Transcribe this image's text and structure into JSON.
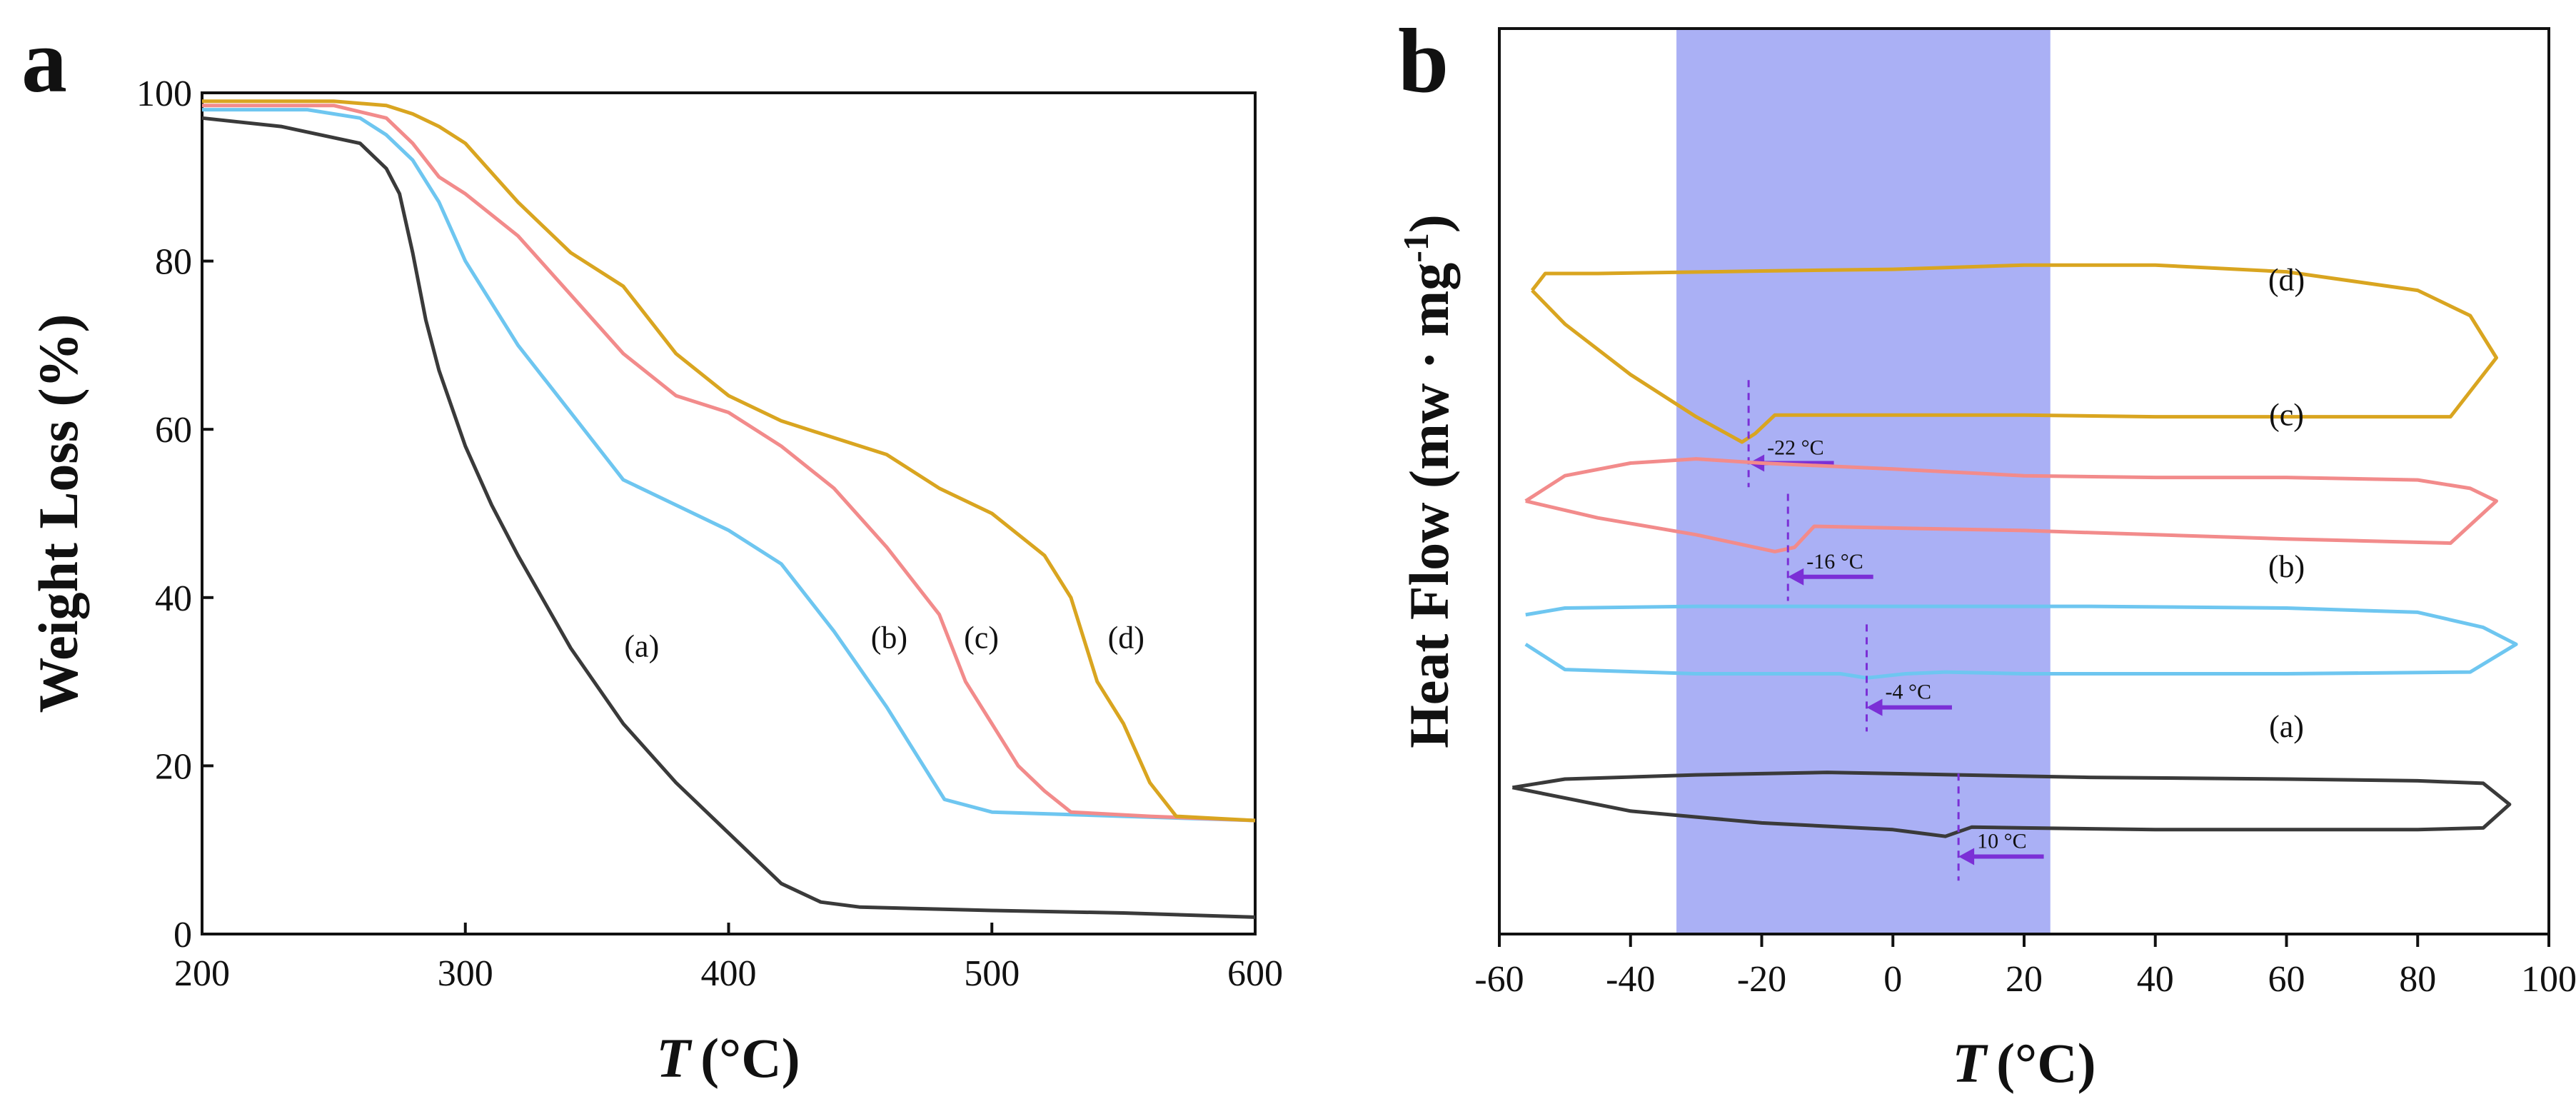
{
  "chart_data": [
    {
      "type": "line",
      "panel_label": "a",
      "xlabel_italic": "T",
      "xlabel_unit": "(°C)",
      "ylabel": "Weight Loss (%)",
      "xlim": [
        200,
        600
      ],
      "ylim": [
        0,
        100
      ],
      "xticks": [
        200,
        300,
        400,
        500,
        600
      ],
      "yticks": [
        0,
        20,
        40,
        60,
        80,
        100
      ],
      "series": [
        {
          "name": "(a)",
          "color": "#3a3a3a",
          "x": [
            200,
            230,
            260,
            270,
            275,
            280,
            285,
            290,
            300,
            310,
            320,
            340,
            360,
            380,
            400,
            420,
            435,
            450,
            500,
            550,
            600
          ],
          "y": [
            97,
            96,
            94,
            91,
            88,
            81,
            73,
            67,
            58,
            51,
            45,
            34,
            25,
            18,
            12,
            6,
            3.8,
            3.2,
            2.8,
            2.5,
            2.0
          ],
          "label_x": 367,
          "label_y": 33
        },
        {
          "name": "(b)",
          "color": "#6ec6f0",
          "x": [
            200,
            240,
            260,
            270,
            280,
            290,
            300,
            320,
            340,
            360,
            380,
            400,
            420,
            440,
            460,
            470,
            478,
            482,
            500,
            550,
            600
          ],
          "y": [
            98,
            98,
            97,
            95,
            92,
            87,
            80,
            70,
            62,
            54,
            51,
            48,
            44,
            36,
            27,
            22,
            18,
            16,
            14.5,
            14,
            13.5
          ],
          "label_x": 461,
          "label_y": 34
        },
        {
          "name": "(c)",
          "color": "#f28b8b",
          "x": [
            200,
            250,
            270,
            280,
            290,
            300,
            320,
            340,
            360,
            380,
            400,
            420,
            440,
            460,
            480,
            490,
            500,
            510,
            520,
            530,
            560,
            600
          ],
          "y": [
            98.5,
            98.5,
            97,
            94,
            90,
            88,
            83,
            76,
            69,
            64,
            62,
            58,
            53,
            46,
            38,
            30,
            25,
            20,
            17,
            14.5,
            14,
            13.5
          ],
          "label_x": 496,
          "label_y": 34
        },
        {
          "name": "(d)",
          "color": "#d9a520",
          "x": [
            200,
            250,
            270,
            280,
            290,
            300,
            320,
            340,
            360,
            380,
            400,
            420,
            440,
            460,
            480,
            500,
            520,
            530,
            540,
            550,
            560,
            570,
            600
          ],
          "y": [
            99,
            99,
            98.5,
            97.5,
            96,
            94,
            87,
            81,
            77,
            69,
            64,
            61,
            59,
            57,
            53,
            50,
            45,
            40,
            30,
            25,
            18,
            14,
            13.5
          ],
          "label_x": 551,
          "label_y": 34
        }
      ]
    },
    {
      "type": "line",
      "panel_label": "b",
      "xlabel_italic": "T",
      "xlabel_unit": "(°C)",
      "ylabel_main": "Heat Flow (mw · mg",
      "ylabel_sup": "-1",
      "ylabel_close": ")",
      "xlim": [
        -60,
        100
      ],
      "xticks": [
        -60,
        -40,
        -20,
        0,
        20,
        40,
        60,
        80,
        100
      ],
      "shaded_region": {
        "x_from": -33,
        "x_to": 24,
        "color": "#aab0f5"
      },
      "loops": [
        {
          "name": "(d)",
          "color": "#d9a520",
          "offset": 65,
          "label_x": 60,
          "label_dy": 8,
          "upper_x": [
            -55,
            -53,
            -45,
            -20,
            0,
            20,
            40,
            60,
            80,
            88,
            92
          ],
          "upper_y": [
            8,
            10,
            10,
            10.3,
            10.5,
            11,
            11,
            10.2,
            8,
            5,
            0
          ],
          "lower_x": [
            92,
            85,
            60,
            40,
            20,
            0,
            -18,
            -21,
            -23,
            -30,
            -40,
            -50,
            -55
          ],
          "lower_y": [
            0,
            -7,
            -7,
            -7,
            -6.8,
            -6.8,
            -6.8,
            -9,
            -10,
            -7,
            -2,
            4,
            8
          ],
          "min_temp": -22,
          "min_label": "-22 °C"
        },
        {
          "name": "(c)",
          "color": "#f28b8b",
          "offset": 48,
          "label_x": 60,
          "label_dy": 9,
          "upper_x": [
            -56,
            -50,
            -40,
            -30,
            -20,
            0,
            20,
            40,
            60,
            80,
            88,
            92
          ],
          "upper_y": [
            0,
            3,
            4.5,
            5,
            4.5,
            3.8,
            3,
            2.8,
            2.8,
            2.5,
            1.5,
            0
          ],
          "lower_x": [
            92,
            85,
            60,
            40,
            20,
            0,
            -12,
            -15,
            -18,
            -30,
            -45,
            -56
          ],
          "lower_y": [
            0,
            -5,
            -4.5,
            -4,
            -3.5,
            -3.2,
            -3,
            -5.5,
            -6,
            -4,
            -2,
            0
          ],
          "min_temp": -16,
          "min_label": "-16 °C"
        },
        {
          "name": "(b)",
          "color": "#6ec6f0",
          "offset": 31,
          "label_x": 60,
          "label_dy": 8,
          "upper_x": [
            -56,
            -50,
            -30,
            -10,
            10,
            30,
            60,
            80,
            90,
            95
          ],
          "upper_y": [
            3.5,
            4.3,
            4.5,
            4.5,
            4.5,
            4.5,
            4.3,
            3.8,
            2,
            0
          ],
          "lower_x": [
            95,
            88,
            60,
            40,
            20,
            8,
            2,
            -4,
            -8,
            -30,
            -50,
            -56
          ],
          "lower_y": [
            0,
            -3.3,
            -3.5,
            -3.5,
            -3.5,
            -3.3,
            -3.5,
            -4,
            -3.5,
            -3.5,
            -3,
            0
          ],
          "min_temp": -4,
          "min_label": "-4 °C"
        },
        {
          "name": "(a)",
          "color": "#3a3a3a",
          "offset": 12,
          "label_x": 60,
          "label_dy": 8,
          "upper_x": [
            -58,
            -50,
            -30,
            -10,
            10,
            30,
            60,
            80,
            90,
            94
          ],
          "upper_y": [
            2,
            3,
            3.5,
            3.8,
            3.5,
            3.2,
            3,
            2.8,
            2.5,
            0
          ],
          "lower_x": [
            94,
            90,
            80,
            60,
            40,
            20,
            12,
            8,
            0,
            -20,
            -40,
            -58
          ],
          "lower_y": [
            0,
            -2.8,
            -3,
            -3,
            -3,
            -2.8,
            -2.7,
            -3.8,
            -3,
            -2.2,
            -0.8,
            2
          ],
          "min_temp": 10,
          "min_label": "10 °C"
        }
      ],
      "arrow_color": "#7b2fd6",
      "arrow_length_c": 13
    }
  ]
}
